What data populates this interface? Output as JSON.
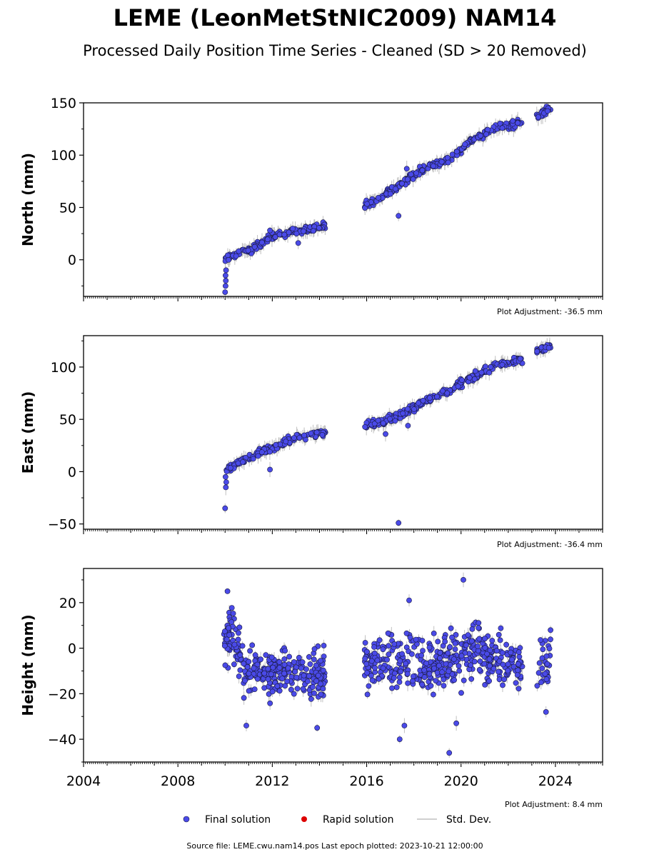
{
  "header": {
    "title": "LEME (LeonMetStNIC2009) NAM14",
    "subtitle": "Processed Daily Position Time Series - Cleaned (SD > 20 Removed)"
  },
  "legend": {
    "final": "Final solution",
    "rapid": "Rapid solution",
    "std": "Std. Dev."
  },
  "footer": {
    "source": "Source file: LEME.cwu.nam14.pos  Last epoch plotted: 2023-10-21 12:00:00"
  },
  "colors": {
    "final_fill": "#4a4ae8",
    "final_edge": "#1a1a40",
    "rapid": "#dd0000",
    "std": "#c0c0c0"
  },
  "chart_data": [
    {
      "type": "scatter",
      "ylabel": "North (mm)",
      "adjustment": "Plot Adjustment: -36.5 mm",
      "xlim": [
        2004.0,
        2026.0
      ],
      "ylim": [
        -35,
        150
      ],
      "yticks": [
        0,
        50,
        100,
        150
      ],
      "yminor_step": 25,
      "show_xticklabels": false,
      "segments": [
        {
          "t0": 2010.0,
          "t1": 2014.25,
          "trend": [
            [
              2010.0,
              0
            ],
            [
              2010.3,
              4
            ],
            [
              2010.9,
              8
            ],
            [
              2011.3,
              12
            ],
            [
              2012.0,
              22
            ],
            [
              2013.0,
              28
            ],
            [
              2014.2,
              32
            ]
          ],
          "noise": 2.5,
          "count": 150
        },
        {
          "t0": 2015.9,
          "t1": 2022.6,
          "trend": [
            [
              2015.9,
              53
            ],
            [
              2016.5,
              58
            ],
            [
              2017.5,
              73
            ],
            [
              2018.5,
              88
            ],
            [
              2019.5,
              96
            ],
            [
              2020.5,
              115
            ],
            [
              2021.5,
              127
            ],
            [
              2022.6,
              131
            ]
          ],
          "noise": 2.5,
          "count": 230
        },
        {
          "t0": 2023.2,
          "t1": 2023.8,
          "trend": [
            [
              2023.2,
              137
            ],
            [
              2023.8,
              146
            ]
          ],
          "noise": 2.5,
          "count": 25
        }
      ],
      "outliers": [
        {
          "x": 2010.0,
          "y": -31
        },
        {
          "x": 2010.02,
          "y": -25
        },
        {
          "x": 2010.03,
          "y": -20
        },
        {
          "x": 2010.02,
          "y": -15
        },
        {
          "x": 2010.04,
          "y": -10
        },
        {
          "x": 2011.9,
          "y": 28
        },
        {
          "x": 2013.1,
          "y": 16
        },
        {
          "x": 2017.35,
          "y": 42
        },
        {
          "x": 2017.7,
          "y": 87
        }
      ]
    },
    {
      "type": "scatter",
      "ylabel": "East (mm)",
      "adjustment": "Plot Adjustment: -36.4 mm",
      "xlim": [
        2004.0,
        2026.0
      ],
      "ylim": [
        -55,
        130
      ],
      "yticks": [
        -50,
        0,
        50,
        100
      ],
      "yminor_step": 25,
      "show_xticklabels": false,
      "segments": [
        {
          "t0": 2010.0,
          "t1": 2014.25,
          "trend": [
            [
              2010.0,
              2
            ],
            [
              2010.5,
              7
            ],
            [
              2011.0,
              13
            ],
            [
              2012.0,
              23
            ],
            [
              2013.0,
              32
            ],
            [
              2014.2,
              37
            ]
          ],
          "noise": 2.5,
          "count": 150
        },
        {
          "t0": 2015.9,
          "t1": 2022.6,
          "trend": [
            [
              2015.9,
              44
            ],
            [
              2016.5,
              47
            ],
            [
              2017.5,
              55
            ],
            [
              2018.5,
              68
            ],
            [
              2019.5,
              77
            ],
            [
              2020.5,
              90
            ],
            [
              2021.5,
              102
            ],
            [
              2022.6,
              108
            ]
          ],
          "noise": 2.5,
          "count": 230
        },
        {
          "t0": 2023.2,
          "t1": 2023.8,
          "trend": [
            [
              2023.2,
              116
            ],
            [
              2023.8,
              120
            ]
          ],
          "noise": 2.0,
          "count": 25
        }
      ],
      "outliers": [
        {
          "x": 2010.0,
          "y": -35
        },
        {
          "x": 2010.03,
          "y": -15
        },
        {
          "x": 2010.05,
          "y": -10
        },
        {
          "x": 2010.02,
          "y": -5
        },
        {
          "x": 2011.9,
          "y": 2
        },
        {
          "x": 2016.8,
          "y": 36
        },
        {
          "x": 2017.35,
          "y": -49
        },
        {
          "x": 2017.75,
          "y": 44
        }
      ]
    },
    {
      "type": "scatter",
      "ylabel": "Height (mm)",
      "adjustment": "Plot Adjustment: 8.4 mm",
      "xlim": [
        2004.0,
        2026.0
      ],
      "ylim": [
        -50,
        35
      ],
      "yticks": [
        -40,
        -20,
        0,
        20
      ],
      "yminor_step": 10,
      "show_xticklabels": true,
      "xticks": [
        2004,
        2008,
        2012,
        2016,
        2020,
        2024
      ],
      "segments": [
        {
          "t0": 2009.95,
          "t1": 2014.25,
          "trend": [
            [
              2009.95,
              0
            ],
            [
              2010.3,
              8
            ],
            [
              2010.8,
              -12
            ],
            [
              2011.3,
              -10
            ],
            [
              2012.0,
              -12
            ],
            [
              2013.0,
              -8
            ],
            [
              2014.2,
              -12
            ]
          ],
          "noise": 7,
          "count": 300
        },
        {
          "t0": 2015.9,
          "t1": 2022.6,
          "trend": [
            [
              2015.9,
              -5
            ],
            [
              2017.0,
              -5
            ],
            [
              2018.5,
              -8
            ],
            [
              2019.5,
              -5
            ],
            [
              2020.5,
              0
            ],
            [
              2021.5,
              -5
            ],
            [
              2022.6,
              -8
            ]
          ],
          "noise": 8,
          "count": 420
        },
        {
          "t0": 2023.2,
          "t1": 2023.8,
          "trend": [
            [
              2023.2,
              -5
            ],
            [
              2023.8,
              -5
            ]
          ],
          "noise": 8,
          "count": 30
        }
      ],
      "outliers": [
        {
          "x": 2010.1,
          "y": 25
        },
        {
          "x": 2010.9,
          "y": -34
        },
        {
          "x": 2013.9,
          "y": -35
        },
        {
          "x": 2017.4,
          "y": -40
        },
        {
          "x": 2017.6,
          "y": -34
        },
        {
          "x": 2019.5,
          "y": -46
        },
        {
          "x": 2020.1,
          "y": 30
        },
        {
          "x": 2019.8,
          "y": -33
        },
        {
          "x": 2017.8,
          "y": 21
        },
        {
          "x": 2023.6,
          "y": -28
        }
      ]
    }
  ]
}
